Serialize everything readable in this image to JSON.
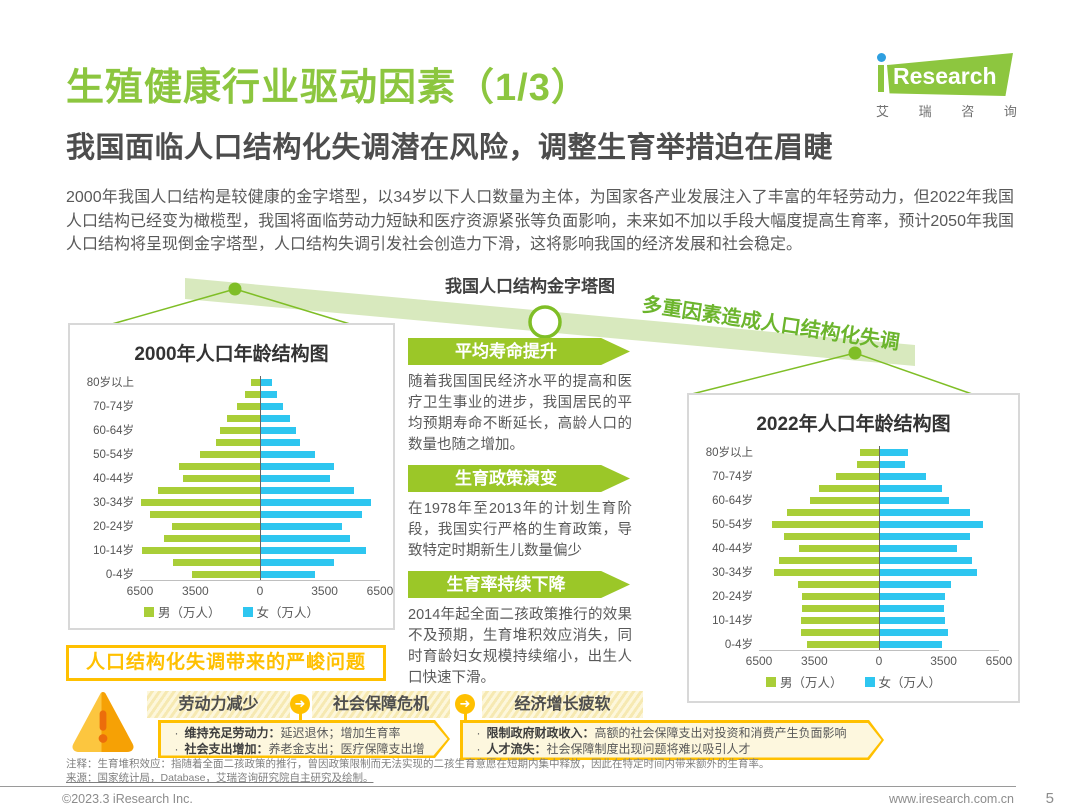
{
  "header": {
    "title": "生殖健康行业驱动因素（1/3）",
    "subtitle": "我国面临人口结构化失调潜在风险，调整生育举措迫在眉睫",
    "logo": {
      "brand": "Research",
      "cn": "艾 瑞 咨 询"
    }
  },
  "intro": "2000年我国人口结构是较健康的金字塔型，以34岁以下人口数量为主体，为国家各产业发展注入了丰富的年轻劳动力，但2022年我国人口结构已经变为橄榄型，我国将面临劳动力短缺和医疗资源紧张等负面影响，未来如不加以手段大幅度提高生育率，预计2050年我国人口结构将呈现倒金字塔型，人口结构失调引发社会创造力下滑，这将影响我国的经济发展和社会稳定。",
  "diagram": {
    "heading": "我国人口结构金字塔图",
    "ribbon_text": "多重因素造成人口结构化失调"
  },
  "factors": [
    {
      "label": "平均寿命提升",
      "text": "随着我国国民经济水平的提高和医疗卫生事业的进步，我国居民的平均预期寿命不断延长，高龄人口的数量也随之增加。"
    },
    {
      "label": "生育政策演变",
      "text": "在1978年至2013年的计划生育阶段，我国实行严格的生育政策，导致特定时期新生儿数量偏少"
    },
    {
      "label": "生育率持续下降",
      "text": "2014年起全面二孩政策推行的效果不及预期，生育堆积效应消失，同时育龄妇女规模持续缩小，出生人口快速下滑。"
    }
  ],
  "problems": {
    "title": "人口结构化失调带来的严峻问题",
    "chain": [
      "劳动力减少",
      "社会保障危机",
      "经济增长疲软"
    ],
    "arrow_glyph": "➜",
    "warning_glyph": "!",
    "callouts": [
      {
        "bullets": [
          {
            "label": "维持充足劳动力：",
            "text": "延迟退休；增加生育率"
          },
          {
            "label": "社会支出增加：",
            "text": "养老金支出；医疗保障支出增加"
          }
        ]
      },
      {
        "bullets": [
          {
            "label": "限制政府财政收入：",
            "text": "高额的社会保障支出对投资和消费产生负面影响"
          },
          {
            "label": "人才流失：",
            "text": "社会保障制度出现问题将难以吸引人才"
          }
        ]
      }
    ]
  },
  "chart_data": [
    {
      "type": "bar",
      "variant": "population_pyramid",
      "title": "2000年人口年龄结构图",
      "unit": "万人",
      "age_groups": [
        "80岁以上",
        "75-79岁",
        "70-74岁",
        "65-69岁",
        "60-64岁",
        "55-59岁",
        "50-54岁",
        "45-49岁",
        "40-44岁",
        "35-39岁",
        "30-34岁",
        "25-29岁",
        "20-24岁",
        "15-19岁",
        "10-14岁",
        "5-9岁",
        "0-4岁"
      ],
      "shown_axis_labels": [
        "80岁以上",
        "70-74岁",
        "60-64岁",
        "50-54岁",
        "40-44岁",
        "30-34岁",
        "20-24岁",
        "10-14岁",
        "0-4岁"
      ],
      "series": [
        {
          "name": "男（万人）",
          "values": [
            500,
            800,
            1250,
            1800,
            2150,
            2400,
            3250,
            4400,
            4150,
            5550,
            6450,
            5950,
            4750,
            5200,
            6400,
            4700,
            3700
          ]
        },
        {
          "name": "女（万人）",
          "values": [
            650,
            900,
            1250,
            1650,
            1950,
            2150,
            3000,
            4000,
            3800,
            5100,
            6000,
            5500,
            4450,
            4850,
            5750,
            4000,
            3000
          ]
        }
      ],
      "x_ticks": [
        "6500",
        "3500",
        "0",
        "3500",
        "6500"
      ],
      "xmax": 6500
    },
    {
      "type": "bar",
      "variant": "population_pyramid",
      "title": "2022年人口年龄结构图",
      "unit": "万人",
      "age_groups": [
        "80岁以上",
        "75-79岁",
        "70-74岁",
        "65-69岁",
        "60-64岁",
        "55-59岁",
        "50-54岁",
        "45-49岁",
        "40-44岁",
        "35-39岁",
        "30-34岁",
        "25-29岁",
        "20-24岁",
        "15-19岁",
        "10-14岁",
        "5-9岁",
        "0-4岁"
      ],
      "shown_axis_labels": [
        "80岁以上",
        "70-74岁",
        "60-64岁",
        "50-54岁",
        "40-44岁",
        "30-34岁",
        "20-24岁",
        "10-14岁",
        "0-4岁"
      ],
      "series": [
        {
          "name": "男（万人）",
          "values": [
            1050,
            1200,
            2350,
            3250,
            3750,
            5000,
            5800,
            5150,
            4350,
            5400,
            5700,
            4400,
            4150,
            4150,
            4200,
            4200,
            3900
          ]
        },
        {
          "name": "女（万人）",
          "values": [
            1550,
            1400,
            2550,
            3400,
            3800,
            4950,
            5650,
            4950,
            4200,
            5050,
            5300,
            3900,
            3600,
            3500,
            3600,
            3750,
            3400
          ]
        }
      ],
      "x_ticks": [
        "6500",
        "3500",
        "0",
        "3500",
        "6500"
      ],
      "xmax": 6500
    }
  ],
  "footnotes": [
    "注释：生育堆积效应：指随着全面二孩政策的推行，曾因政策限制而无法实现的二孩生育意愿在短期内集中释放，因此在特定时间内带来额外的生育率。",
    "来源：国家统计局，Database，艾瑞咨询研究院自主研究及绘制。"
  ],
  "footer": {
    "copyright": "©2023.3 iResearch Inc.",
    "website": "www.iresearch.com.cn",
    "page": "5"
  },
  "colors": {
    "accent_green": "#8DC63F",
    "bar_male": "#A9CE38",
    "bar_female": "#2EC6F0",
    "yellow": "#FFC000",
    "ribbon": "#D8E9BE"
  }
}
